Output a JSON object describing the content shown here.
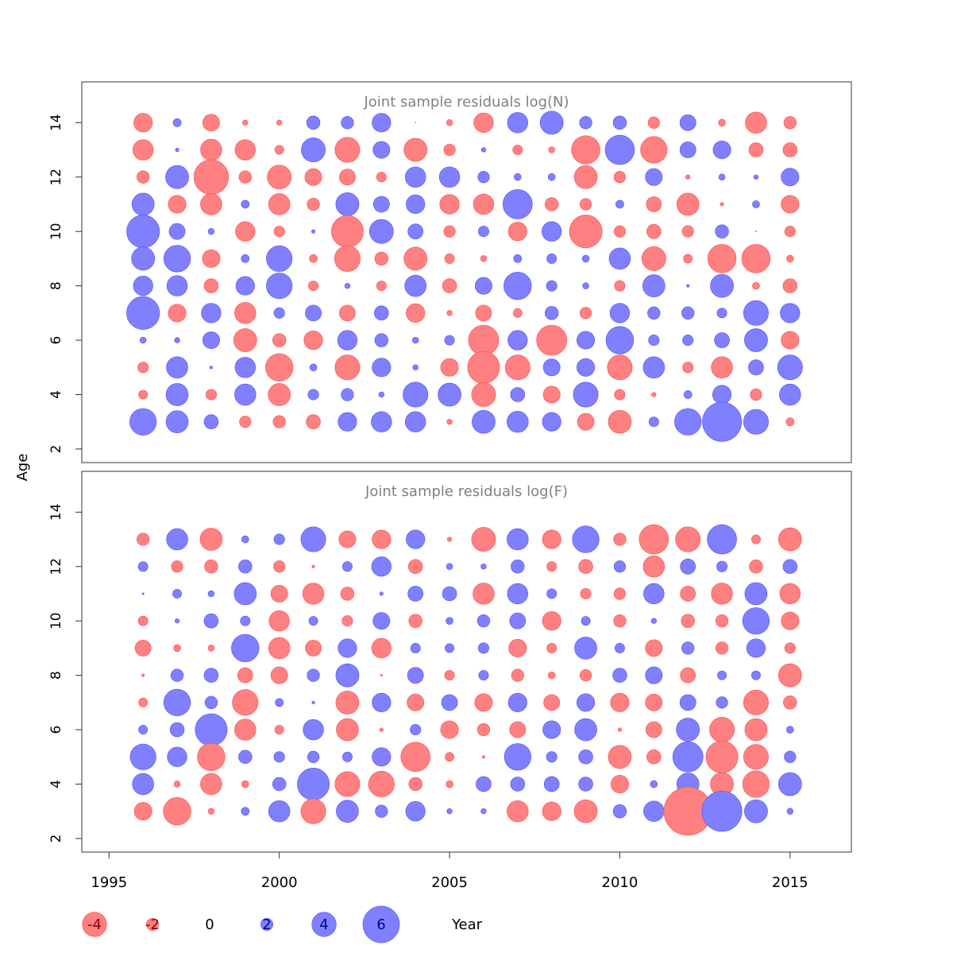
{
  "chart_data": {
    "type": "scatter",
    "subtype": "bubble",
    "xlabel": "Year",
    "ylabel": "Age",
    "x_ticks": [
      1995,
      2000,
      2005,
      2010,
      2015
    ],
    "y_ticks": [
      2,
      4,
      6,
      8,
      10,
      12,
      14
    ],
    "xlim": [
      1994.2,
      2016.8
    ],
    "ylim": [
      1.5,
      15.5
    ],
    "years": [
      1996,
      1997,
      1998,
      1999,
      2000,
      2001,
      2002,
      2003,
      2004,
      2005,
      2006,
      2007,
      2008,
      2009,
      2010,
      2011,
      2012,
      2013,
      2014,
      2015
    ],
    "colors": {
      "negative": "#ff8080",
      "positive": "#8080ff",
      "negative_edge": "#ff4d4d",
      "positive_edge": "#4d4dff"
    },
    "legend": {
      "placement": "bottom",
      "entries": [
        {
          "label": "-4",
          "value": -4
        },
        {
          "label": "-2",
          "value": -2
        },
        {
          "label": "0",
          "value": 0
        },
        {
          "label": "2",
          "value": 2
        },
        {
          "label": "4",
          "value": 4
        },
        {
          "label": "6",
          "value": 6
        }
      ]
    },
    "panels": [
      {
        "title": "Joint sample residuals log(N)",
        "ages": [
          14,
          13,
          12,
          11,
          10,
          9,
          8,
          7,
          6,
          5,
          4,
          3
        ],
        "values": [
          [
            -2.1,
            0.9,
            -1.9,
            -0.6,
            -0.6,
            1.5,
            1.4,
            2.1,
            -0.1,
            -0.7,
            -2.2,
            2.3,
            2.6,
            1.4,
            1.5,
            -1.3,
            1.8,
            -0.8,
            -2.4,
            -1.4
          ],
          [
            -2.3,
            0.4,
            -2.4,
            -2.3,
            -1.0,
            2.7,
            -2.8,
            1.9,
            -2.6,
            -1.3,
            0.5,
            -1.1,
            -0.7,
            -3.2,
            3.3,
            -3.0,
            1.8,
            2.0,
            -1.6,
            -1.6
          ],
          [
            -1.4,
            2.6,
            -3.9,
            -1.4,
            -2.7,
            -1.9,
            -1.8,
            -1.1,
            2.3,
            2.3,
            1.3,
            0.8,
            0.8,
            -2.6,
            -1.3,
            1.9,
            -0.5,
            0.7,
            0.5,
            2.0
          ],
          [
            2.5,
            -2.0,
            -2.4,
            0.9,
            -2.4,
            -1.4,
            2.6,
            1.8,
            2.1,
            -2.2,
            -2.3,
            3.3,
            -1.5,
            -1.3,
            0.9,
            -1.7,
            -2.5,
            -0.4,
            0.8,
            -2.0
          ],
          [
            3.7,
            1.8,
            0.7,
            -2.2,
            -1.2,
            0.4,
            -3.6,
            2.7,
            1.7,
            -1.3,
            1.2,
            -2.1,
            2.2,
            -3.7,
            -1.3,
            -1.6,
            -1.3,
            1.5,
            0.1,
            -1.2
          ],
          [
            2.6,
            3.0,
            -2.0,
            0.9,
            2.9,
            -0.9,
            -2.9,
            -1.5,
            -2.6,
            -1.1,
            -0.7,
            0.9,
            1.1,
            0.8,
            2.4,
            -2.7,
            -1.0,
            -3.2,
            -3.2,
            -0.8
          ],
          [
            2.2,
            2.3,
            -1.6,
            2.1,
            2.9,
            -1.1,
            0.6,
            -1.1,
            2.4,
            -1.6,
            1.9,
            3.1,
            1.2,
            0.7,
            -1.2,
            2.5,
            0.3,
            2.6,
            -0.8,
            -1.6
          ],
          [
            3.7,
            -2.0,
            2.2,
            -2.4,
            1.2,
            1.8,
            -1.8,
            1.6,
            -2.1,
            -0.6,
            -1.8,
            -1.0,
            1.5,
            -1.3,
            2.2,
            1.4,
            1.4,
            1.1,
            2.8,
            2.2
          ],
          [
            0.7,
            0.6,
            1.9,
            -2.6,
            -1.5,
            -2.1,
            2.2,
            1.5,
            0.7,
            1.1,
            -3.4,
            2.2,
            -3.4,
            2.0,
            3.1,
            1.2,
            1.2,
            1.7,
            2.6,
            -2.0
          ],
          [
            -1.2,
            2.4,
            0.3,
            2.3,
            -3.1,
            0.8,
            -2.8,
            2.1,
            0.6,
            -2.0,
            -3.6,
            -2.8,
            1.9,
            2.0,
            -2.8,
            2.4,
            -1.2,
            -2.4,
            1.7,
            2.8
          ],
          [
            -1.0,
            2.5,
            -1.2,
            2.4,
            -2.5,
            1.2,
            1.4,
            0.6,
            2.8,
            2.6,
            -2.7,
            1.6,
            -1.9,
            2.8,
            -1.2,
            -0.5,
            0.9,
            2.1,
            -1.3,
            2.4
          ],
          [
            3.0,
            2.5,
            1.6,
            -1.3,
            -1.4,
            -1.6,
            2.1,
            2.3,
            2.3,
            -0.6,
            2.6,
            2.4,
            2.1,
            -1.9,
            -2.6,
            1.1,
            3.0,
            4.4,
            2.8,
            -0.9
          ]
        ]
      },
      {
        "title": "Joint sample residuals log(F)",
        "ages": [
          13,
          12,
          11,
          10,
          9,
          8,
          7,
          6,
          5,
          4,
          3
        ],
        "values": [
          [
            -1.4,
            2.4,
            -2.5,
            0.8,
            1.2,
            2.8,
            -1.9,
            -2.1,
            2.1,
            -0.5,
            -2.7,
            2.4,
            -2.1,
            3.0,
            -1.4,
            -3.3,
            -2.8,
            3.3,
            -1.0,
            -2.6
          ],
          [
            1.1,
            -1.3,
            -1.5,
            1.5,
            -1.3,
            -0.3,
            1.1,
            2.2,
            -1.6,
            0.7,
            0.6,
            1.5,
            -1.1,
            -1.6,
            1.3,
            -2.4,
            1.7,
            1.2,
            -1.5,
            1.6
          ],
          [
            0.2,
            1.0,
            0.7,
            2.5,
            -1.9,
            -2.4,
            -1.5,
            0.4,
            1.7,
            1.6,
            -2.4,
            2.3,
            1.1,
            -1.2,
            -1.3,
            2.3,
            -1.7,
            -2.4,
            2.5,
            -2.3
          ],
          [
            -1.1,
            0.5,
            1.6,
            1.1,
            -2.3,
            1.0,
            -1.2,
            1.9,
            -1.5,
            0.8,
            1.4,
            1.8,
            -2.1,
            1.0,
            -1.4,
            0.6,
            -1.5,
            -1.4,
            3.0,
            -2.0
          ],
          [
            -1.8,
            -0.8,
            -0.7,
            3.1,
            -2.4,
            -1.8,
            2.1,
            -2.2,
            1.1,
            1.0,
            1.2,
            -2.0,
            -1.1,
            2.5,
            1.1,
            -1.9,
            1.4,
            -1.4,
            2.1,
            -1.2
          ],
          [
            -0.3,
            1.4,
            1.6,
            -1.7,
            -1.9,
            1.4,
            2.6,
            -0.2,
            1.8,
            -1.1,
            1.1,
            -1.4,
            -0.8,
            -1.3,
            1.6,
            1.9,
            -1.7,
            1.0,
            1.0,
            -2.6
          ],
          [
            -1.0,
            3.0,
            1.4,
            -2.9,
            0.9,
            0.3,
            -2.6,
            2.1,
            -1.9,
            1.8,
            -2.0,
            2.1,
            -1.8,
            2.0,
            -2.1,
            -1.9,
            1.8,
            1.3,
            -2.8,
            -1.5
          ],
          [
            1.0,
            1.6,
            3.6,
            -2.4,
            -1.0,
            2.3,
            -2.5,
            -0.4,
            1.2,
            -2.0,
            -1.4,
            -1.8,
            2.0,
            2.5,
            -0.4,
            -1.8,
            2.6,
            -2.8,
            -2.5,
            0.8
          ],
          [
            2.9,
            2.2,
            -3.1,
            1.5,
            1.2,
            1.3,
            1.1,
            2.1,
            -3.3,
            -1.0,
            -0.3,
            3.0,
            1.2,
            1.6,
            -2.6,
            -1.6,
            3.4,
            -3.6,
            -2.8,
            1.3
          ],
          [
            2.4,
            -0.7,
            -2.4,
            -0.8,
            1.5,
            3.6,
            -2.8,
            -2.9,
            -1.5,
            -0.8,
            1.7,
            1.6,
            1.7,
            1.6,
            -2.0,
            0.8,
            2.5,
            -2.6,
            -3.0,
            2.6
          ],
          [
            -2.0,
            -3.1,
            -0.7,
            0.9,
            2.4,
            -2.8,
            2.5,
            1.4,
            2.2,
            0.6,
            0.6,
            -2.4,
            -2.1,
            -2.6,
            1.5,
            2.3,
            -5.4,
            4.5,
            2.6,
            0.7
          ]
        ]
      }
    ]
  }
}
